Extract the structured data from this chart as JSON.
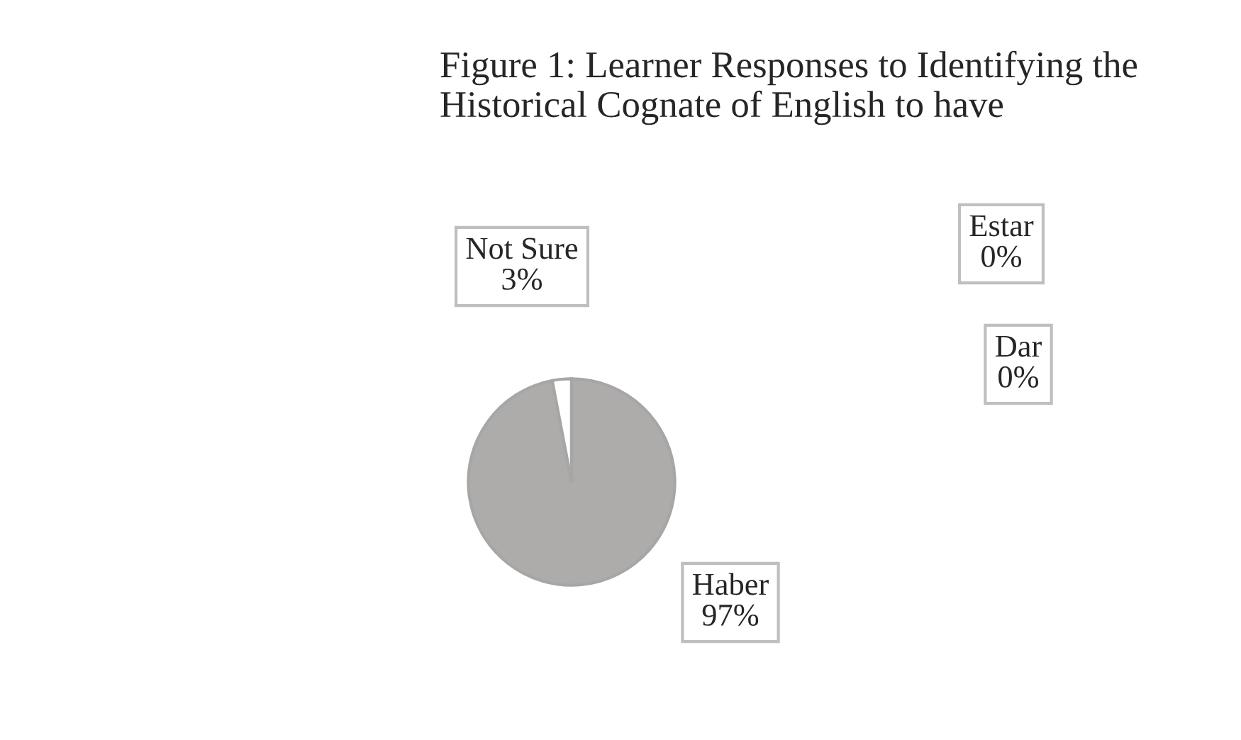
{
  "chart_data": {
    "type": "pie",
    "title": "Figure 1: Learner Responses to Identifying the Historical Cognate of English to have",
    "categories": [
      "Haber",
      "Not Sure",
      "Estar",
      "Dar"
    ],
    "values": [
      97,
      3,
      0,
      0
    ],
    "value_labels": [
      "97%",
      "3%",
      "0%",
      "0%"
    ],
    "colors": [
      "#aeabab",
      "#ffffff",
      "#d9d9d9",
      "#7f7f7f"
    ],
    "legend": false
  }
}
